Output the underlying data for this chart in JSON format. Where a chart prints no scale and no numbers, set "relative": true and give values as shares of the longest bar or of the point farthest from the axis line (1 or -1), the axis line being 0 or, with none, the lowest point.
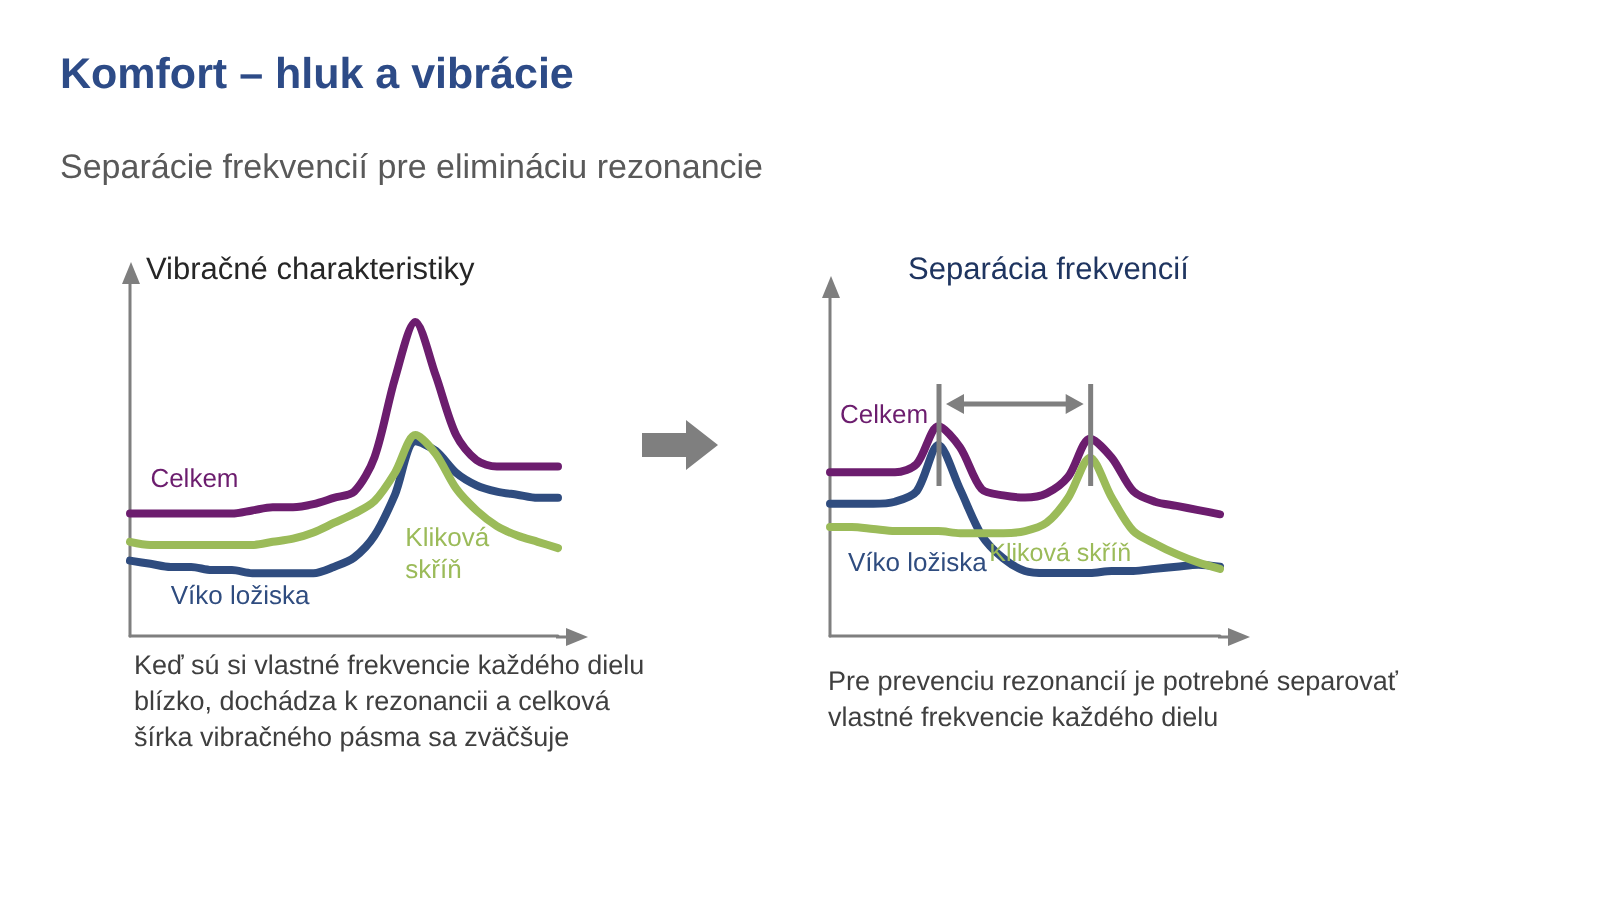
{
  "chart_data": [
    {
      "type": "line",
      "title": "Vibračné charakteristiky",
      "relative": true,
      "categories": [
        null,
        null,
        null,
        null,
        null,
        null,
        null,
        null,
        null,
        null,
        null,
        null,
        null,
        null,
        null,
        null,
        null,
        null,
        null,
        null,
        null,
        null
      ],
      "series": [
        {
          "name": "Celkem",
          "color": "#6c1d6e",
          "values": [
            0.39,
            0.39,
            0.39,
            0.39,
            0.39,
            0.39,
            0.4,
            0.41,
            0.41,
            0.42,
            0.44,
            0.46,
            0.57,
            0.82,
            1,
            0.83,
            0.64,
            0.56,
            0.54,
            0.54,
            0.54,
            0.54
          ]
        },
        {
          "name": "Víko ložiska",
          "color": "#2f4c7f",
          "values": [
            0.24,
            0.23,
            0.22,
            0.22,
            0.21,
            0.21,
            0.2,
            0.2,
            0.2,
            0.2,
            0.22,
            0.25,
            0.32,
            0.45,
            0.62,
            0.59,
            0.52,
            0.48,
            0.46,
            0.45,
            0.44,
            0.44
          ]
        },
        {
          "name": "Kliková skříň",
          "color": "#9bbb59",
          "values": [
            0.3,
            0.29,
            0.29,
            0.29,
            0.29,
            0.29,
            0.29,
            0.3,
            0.31,
            0.33,
            0.36,
            0.39,
            0.43,
            0.52,
            0.64,
            0.58,
            0.47,
            0.4,
            0.35,
            0.32,
            0.3,
            0.28
          ]
        }
      ],
      "annotations": [
        "Komfort – hluk a vibrácie",
        "Separácie frekvencií pre elimináciu rezonancie",
        "Keď sú si vlastné frekvencie každého dielu blízko, dochádza k rezonancii a celková šírka vibračného pásma sa zväčšuje"
      ]
    },
    {
      "type": "line",
      "title": "Separácia frekvencií",
      "relative": true,
      "categories": [
        null,
        null,
        null,
        null,
        null,
        null,
        null,
        null,
        null,
        null,
        null,
        null,
        null,
        null,
        null,
        null,
        null,
        null,
        null
      ],
      "series": [
        {
          "name": "Celkem",
          "color": "#6c1d6e",
          "values": [
            0.78,
            0.78,
            0.78,
            0.78,
            0.82,
            1,
            0.9,
            0.7,
            0.67,
            0.66,
            0.68,
            0.76,
            0.94,
            0.85,
            0.69,
            0.64,
            0.62,
            0.6,
            0.58
          ]
        },
        {
          "name": "Víko ložiska",
          "color": "#2f4c7f",
          "values": [
            0.63,
            0.63,
            0.63,
            0.64,
            0.69,
            0.91,
            0.7,
            0.48,
            0.37,
            0.31,
            0.3,
            0.3,
            0.3,
            0.31,
            0.31,
            0.32,
            0.33,
            0.34,
            0.33
          ]
        },
        {
          "name": "Kliková skříň",
          "color": "#9bbb59",
          "values": [
            0.52,
            0.52,
            0.51,
            0.5,
            0.5,
            0.5,
            0.49,
            0.49,
            0.49,
            0.5,
            0.54,
            0.66,
            0.85,
            0.66,
            0.5,
            0.44,
            0.39,
            0.35,
            0.32
          ]
        }
      ],
      "annotations": [
        "Pre prevenciu rezonancií je potrebné separovať vlastné frekvencie každého dielu"
      ]
    }
  ]
}
